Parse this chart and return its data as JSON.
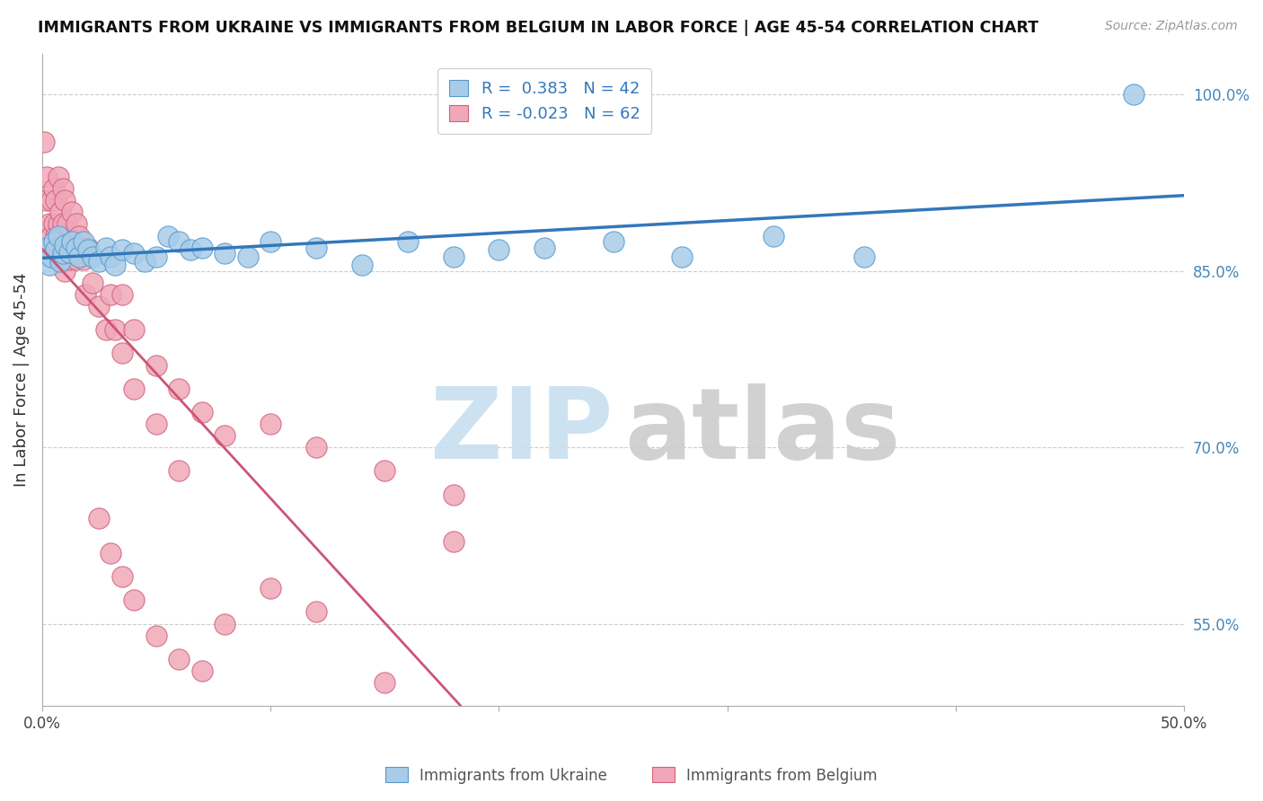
{
  "title": "IMMIGRANTS FROM UKRAINE VS IMMIGRANTS FROM BELGIUM IN LABOR FORCE | AGE 45-54 CORRELATION CHART",
  "source": "Source: ZipAtlas.com",
  "ylabel": "In Labor Force | Age 45-54",
  "xlim": [
    0.0,
    0.5
  ],
  "ylim": [
    0.48,
    1.035
  ],
  "yticks_right": [
    0.55,
    0.7,
    0.85,
    1.0
  ],
  "ytick_right_labels": [
    "55.0%",
    "70.0%",
    "85.0%",
    "100.0%"
  ],
  "ukraine_R": 0.383,
  "ukraine_N": 42,
  "belgium_R": -0.023,
  "belgium_N": 62,
  "ukraine_color": "#A8CCE8",
  "ukraine_edge_color": "#5599CC",
  "ukraine_line_color": "#3377BB",
  "belgium_color": "#F0A8B8",
  "belgium_edge_color": "#D06080",
  "belgium_line_color": "#CC5577",
  "ukraine_x": [
    0.002,
    0.003,
    0.004,
    0.005,
    0.006,
    0.007,
    0.008,
    0.009,
    0.01,
    0.012,
    0.013,
    0.015,
    0.016,
    0.018,
    0.02,
    0.022,
    0.025,
    0.028,
    0.03,
    0.032,
    0.035,
    0.04,
    0.045,
    0.05,
    0.055,
    0.06,
    0.065,
    0.07,
    0.08,
    0.09,
    0.1,
    0.12,
    0.14,
    0.16,
    0.18,
    0.2,
    0.22,
    0.25,
    0.28,
    0.32,
    0.36,
    0.478
  ],
  "ukraine_y": [
    0.87,
    0.855,
    0.862,
    0.875,
    0.868,
    0.88,
    0.858,
    0.865,
    0.872,
    0.866,
    0.875,
    0.87,
    0.862,
    0.875,
    0.868,
    0.862,
    0.858,
    0.87,
    0.862,
    0.855,
    0.868,
    0.865,
    0.858,
    0.862,
    0.88,
    0.875,
    0.868,
    0.87,
    0.865,
    0.862,
    0.875,
    0.87,
    0.855,
    0.875,
    0.862,
    0.868,
    0.87,
    0.875,
    0.862,
    0.88,
    0.862,
    1.0
  ],
  "belgium_x": [
    0.001,
    0.002,
    0.002,
    0.003,
    0.003,
    0.004,
    0.004,
    0.005,
    0.005,
    0.006,
    0.006,
    0.007,
    0.007,
    0.007,
    0.008,
    0.008,
    0.009,
    0.009,
    0.01,
    0.01,
    0.01,
    0.011,
    0.012,
    0.013,
    0.014,
    0.015,
    0.015,
    0.016,
    0.018,
    0.019,
    0.02,
    0.022,
    0.025,
    0.028,
    0.03,
    0.032,
    0.035,
    0.04,
    0.05,
    0.06,
    0.07,
    0.08,
    0.1,
    0.12,
    0.15,
    0.18,
    0.035,
    0.04,
    0.05,
    0.06,
    0.025,
    0.03,
    0.035,
    0.04,
    0.05,
    0.06,
    0.07,
    0.08,
    0.1,
    0.12,
    0.15,
    0.18
  ],
  "belgium_y": [
    0.96,
    0.93,
    0.91,
    0.89,
    0.87,
    0.91,
    0.88,
    0.92,
    0.89,
    0.91,
    0.88,
    0.93,
    0.89,
    0.86,
    0.9,
    0.87,
    0.92,
    0.89,
    0.91,
    0.88,
    0.85,
    0.89,
    0.86,
    0.9,
    0.87,
    0.89,
    0.86,
    0.88,
    0.86,
    0.83,
    0.87,
    0.84,
    0.82,
    0.8,
    0.83,
    0.8,
    0.83,
    0.8,
    0.77,
    0.75,
    0.73,
    0.71,
    0.72,
    0.7,
    0.68,
    0.66,
    0.78,
    0.75,
    0.72,
    0.68,
    0.64,
    0.61,
    0.59,
    0.57,
    0.54,
    0.52,
    0.51,
    0.55,
    0.58,
    0.56,
    0.5,
    0.62
  ],
  "watermark_zip": "ZIP",
  "watermark_atlas": "atlas",
  "legend_ukraine_label": "Immigrants from Ukraine",
  "legend_belgium_label": "Immigrants from Belgium",
  "legend_ukraine_text": "R =  0.383   N = 42",
  "legend_belgium_text": "R = -0.023   N = 62"
}
